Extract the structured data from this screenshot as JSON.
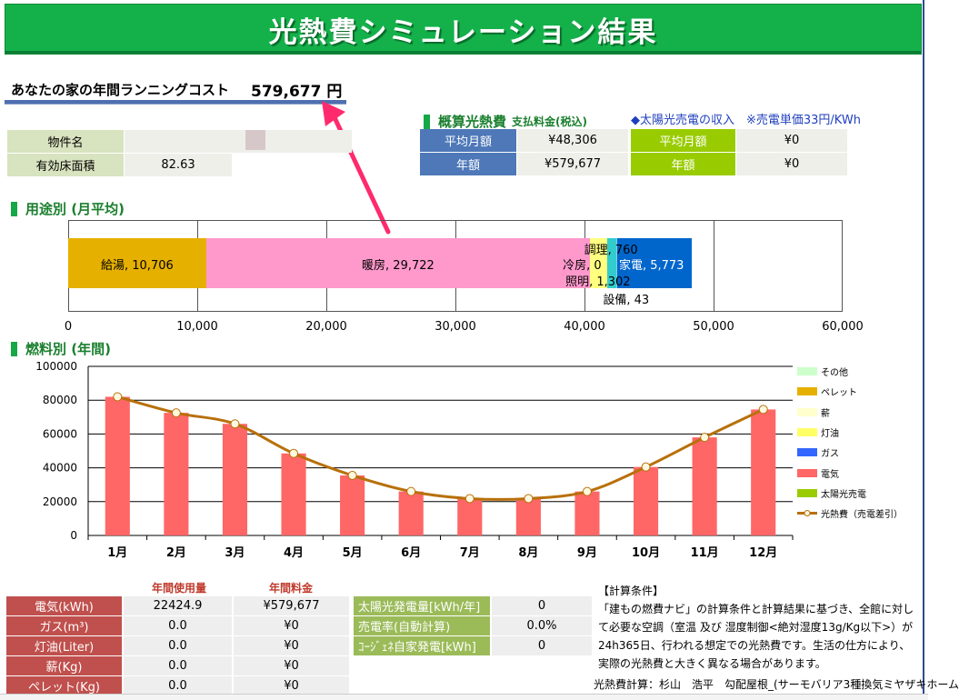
{
  "title": "光熱費シミュレーション結果",
  "annual_cost": {
    "label": "あなたの家の年間ランニングコスト",
    "value": "579,677 円"
  },
  "property": {
    "name_label": "物件名",
    "name_value": "",
    "area_label": "有効床面積",
    "area_value": "82.63"
  },
  "summary": {
    "title": "概算光熱費",
    "subtitle": "支払料金(税込)",
    "monthly_label": "平均月額",
    "monthly_value": "¥48,306",
    "annual_label": "年額",
    "annual_value": "¥579,677"
  },
  "solar": {
    "title": "◆太陽光売電の収入　※売電単価33円/KWh",
    "monthly_label": "平均月額",
    "monthly_value": "¥0",
    "annual_label": "年額",
    "annual_value": "¥0"
  },
  "usage_section_title": "用途別 (月平均)",
  "fuel_section_title": "燃料別 (年間)",
  "chart_data": [
    {
      "type": "bar",
      "orientation": "horizontal-stacked",
      "categories": [
        "給湯",
        "暖房",
        "冷房",
        "照明",
        "調理",
        "設備",
        "家電"
      ],
      "values": [
        10706,
        29722,
        0,
        1302,
        760,
        43,
        5773
      ],
      "labels": [
        "給湯, 10,706",
        "暖房, 29,722",
        "冷房, 0",
        "照明, 1,302",
        "調理, 760",
        "設備, 43",
        "家電, 5,773"
      ],
      "colors": [
        "#e6b000",
        "#ff99cc",
        "#9fd7ef",
        "#ffff80",
        "#33cccc",
        "#7fd1e8",
        "#0066cc"
      ],
      "xlim": [
        0,
        60000
      ],
      "xticks": [
        "0",
        "10,000",
        "20,000",
        "30,000",
        "40,000",
        "50,000",
        "60,000"
      ],
      "grid": true
    },
    {
      "type": "bar",
      "categories": [
        "1月",
        "2月",
        "3月",
        "4月",
        "5月",
        "6月",
        "7月",
        "8月",
        "9月",
        "10月",
        "11月",
        "12月"
      ],
      "series": [
        {
          "name": "電気",
          "type": "bar",
          "color": "#ff6666",
          "values": [
            82000,
            72500,
            66000,
            48500,
            35500,
            26000,
            21800,
            21800,
            26000,
            40500,
            58000,
            74500
          ]
        },
        {
          "name": "光熱費（売電差引）",
          "type": "line",
          "color": "#b8700a",
          "values": [
            82000,
            72500,
            66000,
            48500,
            35500,
            26000,
            21800,
            21800,
            26000,
            40500,
            58000,
            74500
          ]
        }
      ],
      "ylim": [
        0,
        100000
      ],
      "yticks": [
        "0",
        "20000",
        "40000",
        "60000",
        "80000",
        "100000"
      ],
      "legend": [
        {
          "name": "その他",
          "color": "#ccffcc"
        },
        {
          "name": "ペレット",
          "color": "#e6b000"
        },
        {
          "name": "薪",
          "color": "#ffffcc"
        },
        {
          "name": "灯油",
          "color": "#ffff66"
        },
        {
          "name": "ガス",
          "color": "#3366ff"
        },
        {
          "name": "電気",
          "color": "#ff6666"
        },
        {
          "name": "太陽光売電",
          "color": "#99cc00"
        },
        {
          "name": "光熱費（売電差引）",
          "color": "#b8700a"
        }
      ],
      "legend_position": "right",
      "grid": true
    }
  ],
  "fuel_table": {
    "header_usage": "年間使用量",
    "header_cost": "年間料金",
    "rows": [
      {
        "label": "電気(kWh)",
        "usage": "22424.9",
        "cost": "¥579,677"
      },
      {
        "label": "ガス(m³)",
        "usage": "0.0",
        "cost": "¥0"
      },
      {
        "label": "灯油(Liter)",
        "usage": "0.0",
        "cost": "¥0"
      },
      {
        "label": "薪(Kg)",
        "usage": "0.0",
        "cost": "¥0"
      },
      {
        "label": "ペレット(Kg)",
        "usage": "0.0",
        "cost": "¥0"
      }
    ]
  },
  "solar_table": {
    "rows": [
      {
        "label": "太陽光発電量[kWh/年]",
        "value": "0"
      },
      {
        "label": "売電率(自動計算)",
        "value": "0.0%"
      },
      {
        "label": "ｺｰｼﾞｪﾈ自家発電[kWh]",
        "value": "0"
      }
    ]
  },
  "conditions": {
    "title": "【計算条件】",
    "text": "「建もの燃費ナビ」の計算条件と計算結果に基づき、全館に対して必要な空調（室温 及び 湿度制御<絶対湿度13g/Kg以下>）が24h365日、行われる想定での光熱費です。生活の仕方により、実際の光熱費と大きく異なる場合があります。"
  },
  "calc_by": "光熱費計算：杉山　浩平　勾配屋根_(サーモバリア3種換気ミヤザキホーム",
  "colors": {
    "header_green": "#14b14a",
    "arrow": "#ff2a6d",
    "label_blue": "#4e78b8",
    "label_lime": "#99cc00",
    "label_red": "#c0504d",
    "label_olive": "#9bbb59"
  }
}
